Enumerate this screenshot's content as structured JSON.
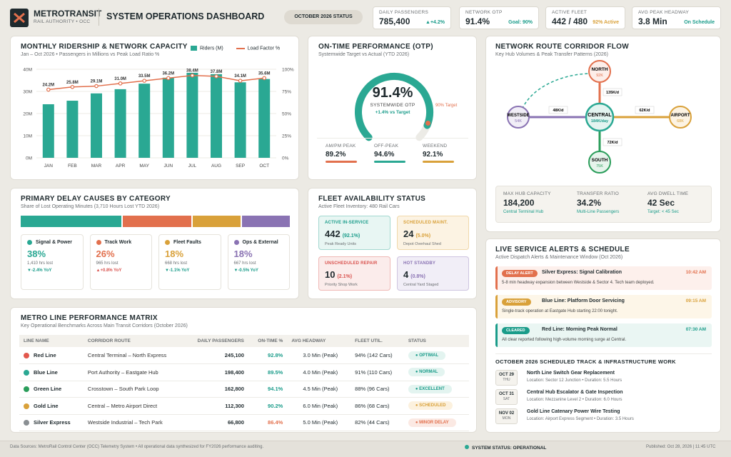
{
  "brand": {
    "name": "METROTRANSIT",
    "sub": "RAIL AUTHORITY • OCC"
  },
  "title": "SYSTEM OPERATIONS DASHBOARD",
  "status_chip": "OCTOBER 2026 STATUS",
  "kpis": [
    {
      "label": "DAILY PASSENGERS",
      "value": "785,400",
      "delta": "▲+4.2%",
      "color": "#1a9c8a"
    },
    {
      "label": "NETWORK OTP",
      "value": "91.4%",
      "delta": "Goal: 90%",
      "color": "#1a9c8a"
    },
    {
      "label": "ACTIVE FLEET",
      "value": "442 / 480",
      "delta": "92% Active",
      "color": "#d9a13a"
    },
    {
      "label": "AVG PEAK HEADWAY",
      "value": "3.8 Min",
      "delta": "On Schedule",
      "color": "#1a9c8a"
    }
  ],
  "ridership": {
    "title": "MONTHLY RIDERSHIP & NETWORK CAPACITY",
    "subtitle": "Jan – Oct 2026 • Passengers in Millions vs Peak Load Ratio %",
    "legend_bar": "Riders (M)",
    "legend_line": "Load Factor %"
  },
  "chart_data": {
    "type": "bar",
    "categories": [
      "JAN",
      "FEB",
      "MAR",
      "APR",
      "MAY",
      "JUN",
      "JUL",
      "AUG",
      "SEP",
      "OCT"
    ],
    "series": [
      {
        "name": "Riders (M)",
        "values": [
          24.2,
          25.8,
          29.1,
          31.0,
          33.5,
          36.2,
          38.4,
          37.8,
          34.1,
          35.6
        ],
        "labels": [
          "24.2M",
          "25.8M",
          "29.1M",
          "31.0M",
          "33.5M",
          "36.2M",
          "38.4M",
          "37.8M",
          "34.1M",
          "35.6M"
        ]
      },
      {
        "name": "Load Factor %",
        "values": [
          77,
          80,
          81,
          84,
          87,
          90,
          93,
          92,
          87,
          90
        ]
      }
    ],
    "y_ticks": [
      "40M",
      "30M",
      "20M",
      "10M",
      "0M"
    ],
    "y2_ticks": [
      "100%",
      "75%",
      "50%",
      "25%",
      "0%"
    ],
    "ylim": [
      0,
      40
    ],
    "y2lim": [
      0,
      100
    ],
    "bar_color": "#2aa893",
    "line_color": "#e2704d"
  },
  "otp": {
    "title": "ON-TIME PERFORMANCE (OTP)",
    "subtitle": "Systemwide Target vs Actual (YTD 2026)",
    "value": "91.4%",
    "value_num": 91.4,
    "caption": "SYSTEMWIDE OTP",
    "delta": "+1.4% vs Target",
    "target": "90% Target",
    "stats": [
      {
        "label": "AM/PM PEAK",
        "value": "89.2%",
        "color": "#e2704d"
      },
      {
        "label": "OFF-PEAK",
        "value": "94.6%",
        "color": "#2aa893"
      },
      {
        "label": "WEEKEND",
        "value": "92.1%",
        "color": "#d9a13a"
      }
    ]
  },
  "corridor": {
    "title": "NETWORK ROUTE CORRIDOR FLOW",
    "subtitle": "Key Hub Volumes & Peak Transfer Patterns (2026)",
    "nodes": {
      "north": {
        "name": "NORTH",
        "val": "92K"
      },
      "westside": {
        "name": "WESTSIDE",
        "val": "54K"
      },
      "central": {
        "name": "CENTRAL",
        "val": "184K/day"
      },
      "airport": {
        "name": "AIRPORT",
        "val": "68K"
      },
      "south": {
        "name": "SOUTH",
        "val": "75K"
      }
    },
    "flows": {
      "n": "135K/d",
      "w": "48K/d",
      "a": "62K/d",
      "s": "72K/d"
    },
    "stats": [
      {
        "label": "MAX HUB CAPACITY",
        "value": "184,200",
        "note": "Central Terminal Hub"
      },
      {
        "label": "TRANSFER RATIO",
        "value": "34.2%",
        "note": "Multi-Line Passengers"
      },
      {
        "label": "AVG DWELL TIME",
        "value": "42 Sec",
        "note": "Target: < 45 Sec"
      }
    ]
  },
  "delay": {
    "title": "PRIMARY DELAY CAUSES BY CATEGORY",
    "subtitle": "Share of Lost Operating Minutes (3,710 Hours Lost YTD 2026)",
    "items": [
      {
        "name": "Signal & Power",
        "pct": "38%",
        "pct_num": 38,
        "hours": "1,410 hrs lost",
        "yoy": "▼-2.4% YoY",
        "color": "#2aa893",
        "yoy_color": "#1a9c8a"
      },
      {
        "name": "Track Work",
        "pct": "26%",
        "pct_num": 26,
        "hours": "965 hrs lost",
        "yoy": "▲+0.8% YoY",
        "color": "#e2704d",
        "yoy_color": "#d9534f"
      },
      {
        "name": "Fleet Faults",
        "pct": "18%",
        "pct_num": 18,
        "hours": "668 hrs lost",
        "yoy": "▼-1.1% YoY",
        "color": "#d9a13a",
        "yoy_color": "#1a9c8a"
      },
      {
        "name": "Ops & External",
        "pct": "18%",
        "pct_num": 18,
        "hours": "667 hrs lost",
        "yoy": "▼-0.5% YoY",
        "color": "#8a73b3",
        "yoy_color": "#1a9c8a"
      }
    ]
  },
  "fleet": {
    "title": "FLEET AVAILABILITY STATUS",
    "subtitle": "Active Fleet Inventory: 480 Rail Cars",
    "tiles": [
      {
        "label": "ACTIVE IN-SERVICE",
        "value": "442",
        "pct": "(92.1%)",
        "note": "Peak Ready Units",
        "color": "#1a9c8a",
        "bg": "#e8f6f3"
      },
      {
        "label": "SCHEDULED MAINT.",
        "value": "24",
        "pct": "(5.0%)",
        "note": "Depot Overhaul Shed",
        "color": "#d9a13a",
        "bg": "#fcf3e3"
      },
      {
        "label": "UNSCHEDULED REPAIR",
        "value": "10",
        "pct": "(2.1%)",
        "note": "Priority Shop Work",
        "color": "#d9534f",
        "bg": "#fbeceb"
      },
      {
        "label": "HOT STANDBY",
        "value": "4",
        "pct": "(0.8%)",
        "note": "Central Yard Staged",
        "color": "#8a73b3",
        "bg": "#f1eef7"
      }
    ]
  },
  "alerts": {
    "title": "LIVE SERVICE ALERTS & SCHEDULE",
    "subtitle": "Active Dispatch Alerts & Maintenance Window (Oct 2026)",
    "items": [
      {
        "tag": "DELAY ALERT",
        "title": "Silver Express: Signal Calibration",
        "time": "10:42 AM",
        "desc": "5-8 min headway expansion between Westside & Sector 4. Tech team deployed.",
        "color": "#e2704d",
        "bg": "#fdf0ec"
      },
      {
        "tag": "ADVISORY",
        "title": "Blue Line: Platform Door Servicing",
        "time": "09:15 AM",
        "desc": "Single-track operation at Eastgate Hub starting 22:00 tonight.",
        "color": "#d9a13a",
        "bg": "#fdf6e8"
      },
      {
        "tag": "CLEARED",
        "title": "Red Line: Morning Peak Normal",
        "time": "07:30 AM",
        "desc": "All clear reported following high-volume morning surge at Central.",
        "color": "#1a9c8a",
        "bg": "#eaf6f3"
      }
    ],
    "work_title": "OCTOBER 2026 SCHEDULED TRACK & INFRASTRUCTURE WORK",
    "work": [
      {
        "d": "OCT 29",
        "w": "THU",
        "t": "North Line Switch Gear Replacement",
        "s": "Location: Sector 12 Junction • Duration: 5.5 Hours"
      },
      {
        "d": "OCT 31",
        "w": "SAT",
        "t": "Central Hub Escalator & Gate Inspection",
        "s": "Location: Mezzanine Level 2 • Duration: 6.0 Hours"
      },
      {
        "d": "NOV 02",
        "w": "MON",
        "t": "Gold Line Catenary Power Wire Testing",
        "s": "Location: Airport Express Segment • Duration: 3.5 Hours"
      }
    ]
  },
  "matrix": {
    "title": "METRO LINE PERFORMANCE MATRIX",
    "subtitle": "Key Operational Benchmarks Across Main Transit Corridors (October 2026)",
    "headers": [
      "LINE NAME",
      "CORRIDOR ROUTE",
      "DAILY PASSENGERS",
      "ON-TIME %",
      "AVG HEADWAY",
      "FLEET UTIL.",
      "STATUS"
    ],
    "rows": [
      {
        "line": "Red Line",
        "route": "Central Terminal – North Express",
        "pax": "245,100",
        "otp": "92.8%",
        "head": "3.0 Min (Peak)",
        "util": "94% (142 Cars)",
        "status": "● OPTIMAL",
        "dot": "#e2584d",
        "otpc": "#1a9c8a",
        "sc": "#1a9c8a",
        "sb": "#e3f4f0"
      },
      {
        "line": "Blue Line",
        "route": "Port Authority – Eastgate Hub",
        "pax": "198,400",
        "otp": "89.5%",
        "head": "4.0 Min (Peak)",
        "util": "91% (110 Cars)",
        "status": "● NORMAL",
        "dot": "#2aa893",
        "otpc": "#1a9c8a",
        "sc": "#1a9c8a",
        "sb": "#e3f4f0"
      },
      {
        "line": "Green Line",
        "route": "Crosstown – South Park Loop",
        "pax": "162,800",
        "otp": "94.1%",
        "head": "4.5 Min (Peak)",
        "util": "88% (96 Cars)",
        "status": "● EXCELLENT",
        "dot": "#2a9d5a",
        "otpc": "#1a9c8a",
        "sc": "#1a9c8a",
        "sb": "#e3f4f0"
      },
      {
        "line": "Gold Line",
        "route": "Central – Metro Airport Direct",
        "pax": "112,300",
        "otp": "90.2%",
        "head": "6.0 Min (Peak)",
        "util": "86% (68 Cars)",
        "status": "● SCHEDULED",
        "dot": "#d9a13a",
        "otpc": "#1a9c8a",
        "sc": "#d9a13a",
        "sb": "#fcf1de"
      },
      {
        "line": "Silver Express",
        "route": "Westside Industrial – Tech Park",
        "pax": "66,800",
        "otp": "86.4%",
        "head": "5.0 Min (Peak)",
        "util": "82% (44 Cars)",
        "status": "● MINOR DELAY",
        "dot": "#8a8f93",
        "otpc": "#e2704d",
        "sc": "#e2704d",
        "sb": "#fbe9e3"
      }
    ]
  },
  "footer": {
    "left": "Data Sources: MetroRail Control Center (OCC) Telemetry System • All operational data synthesized for FY2026 performance auditing.",
    "status": "SYSTEM STATUS: OPERATIONAL",
    "right": "Published: Oct 28, 2026 | 11:45 UTC"
  }
}
